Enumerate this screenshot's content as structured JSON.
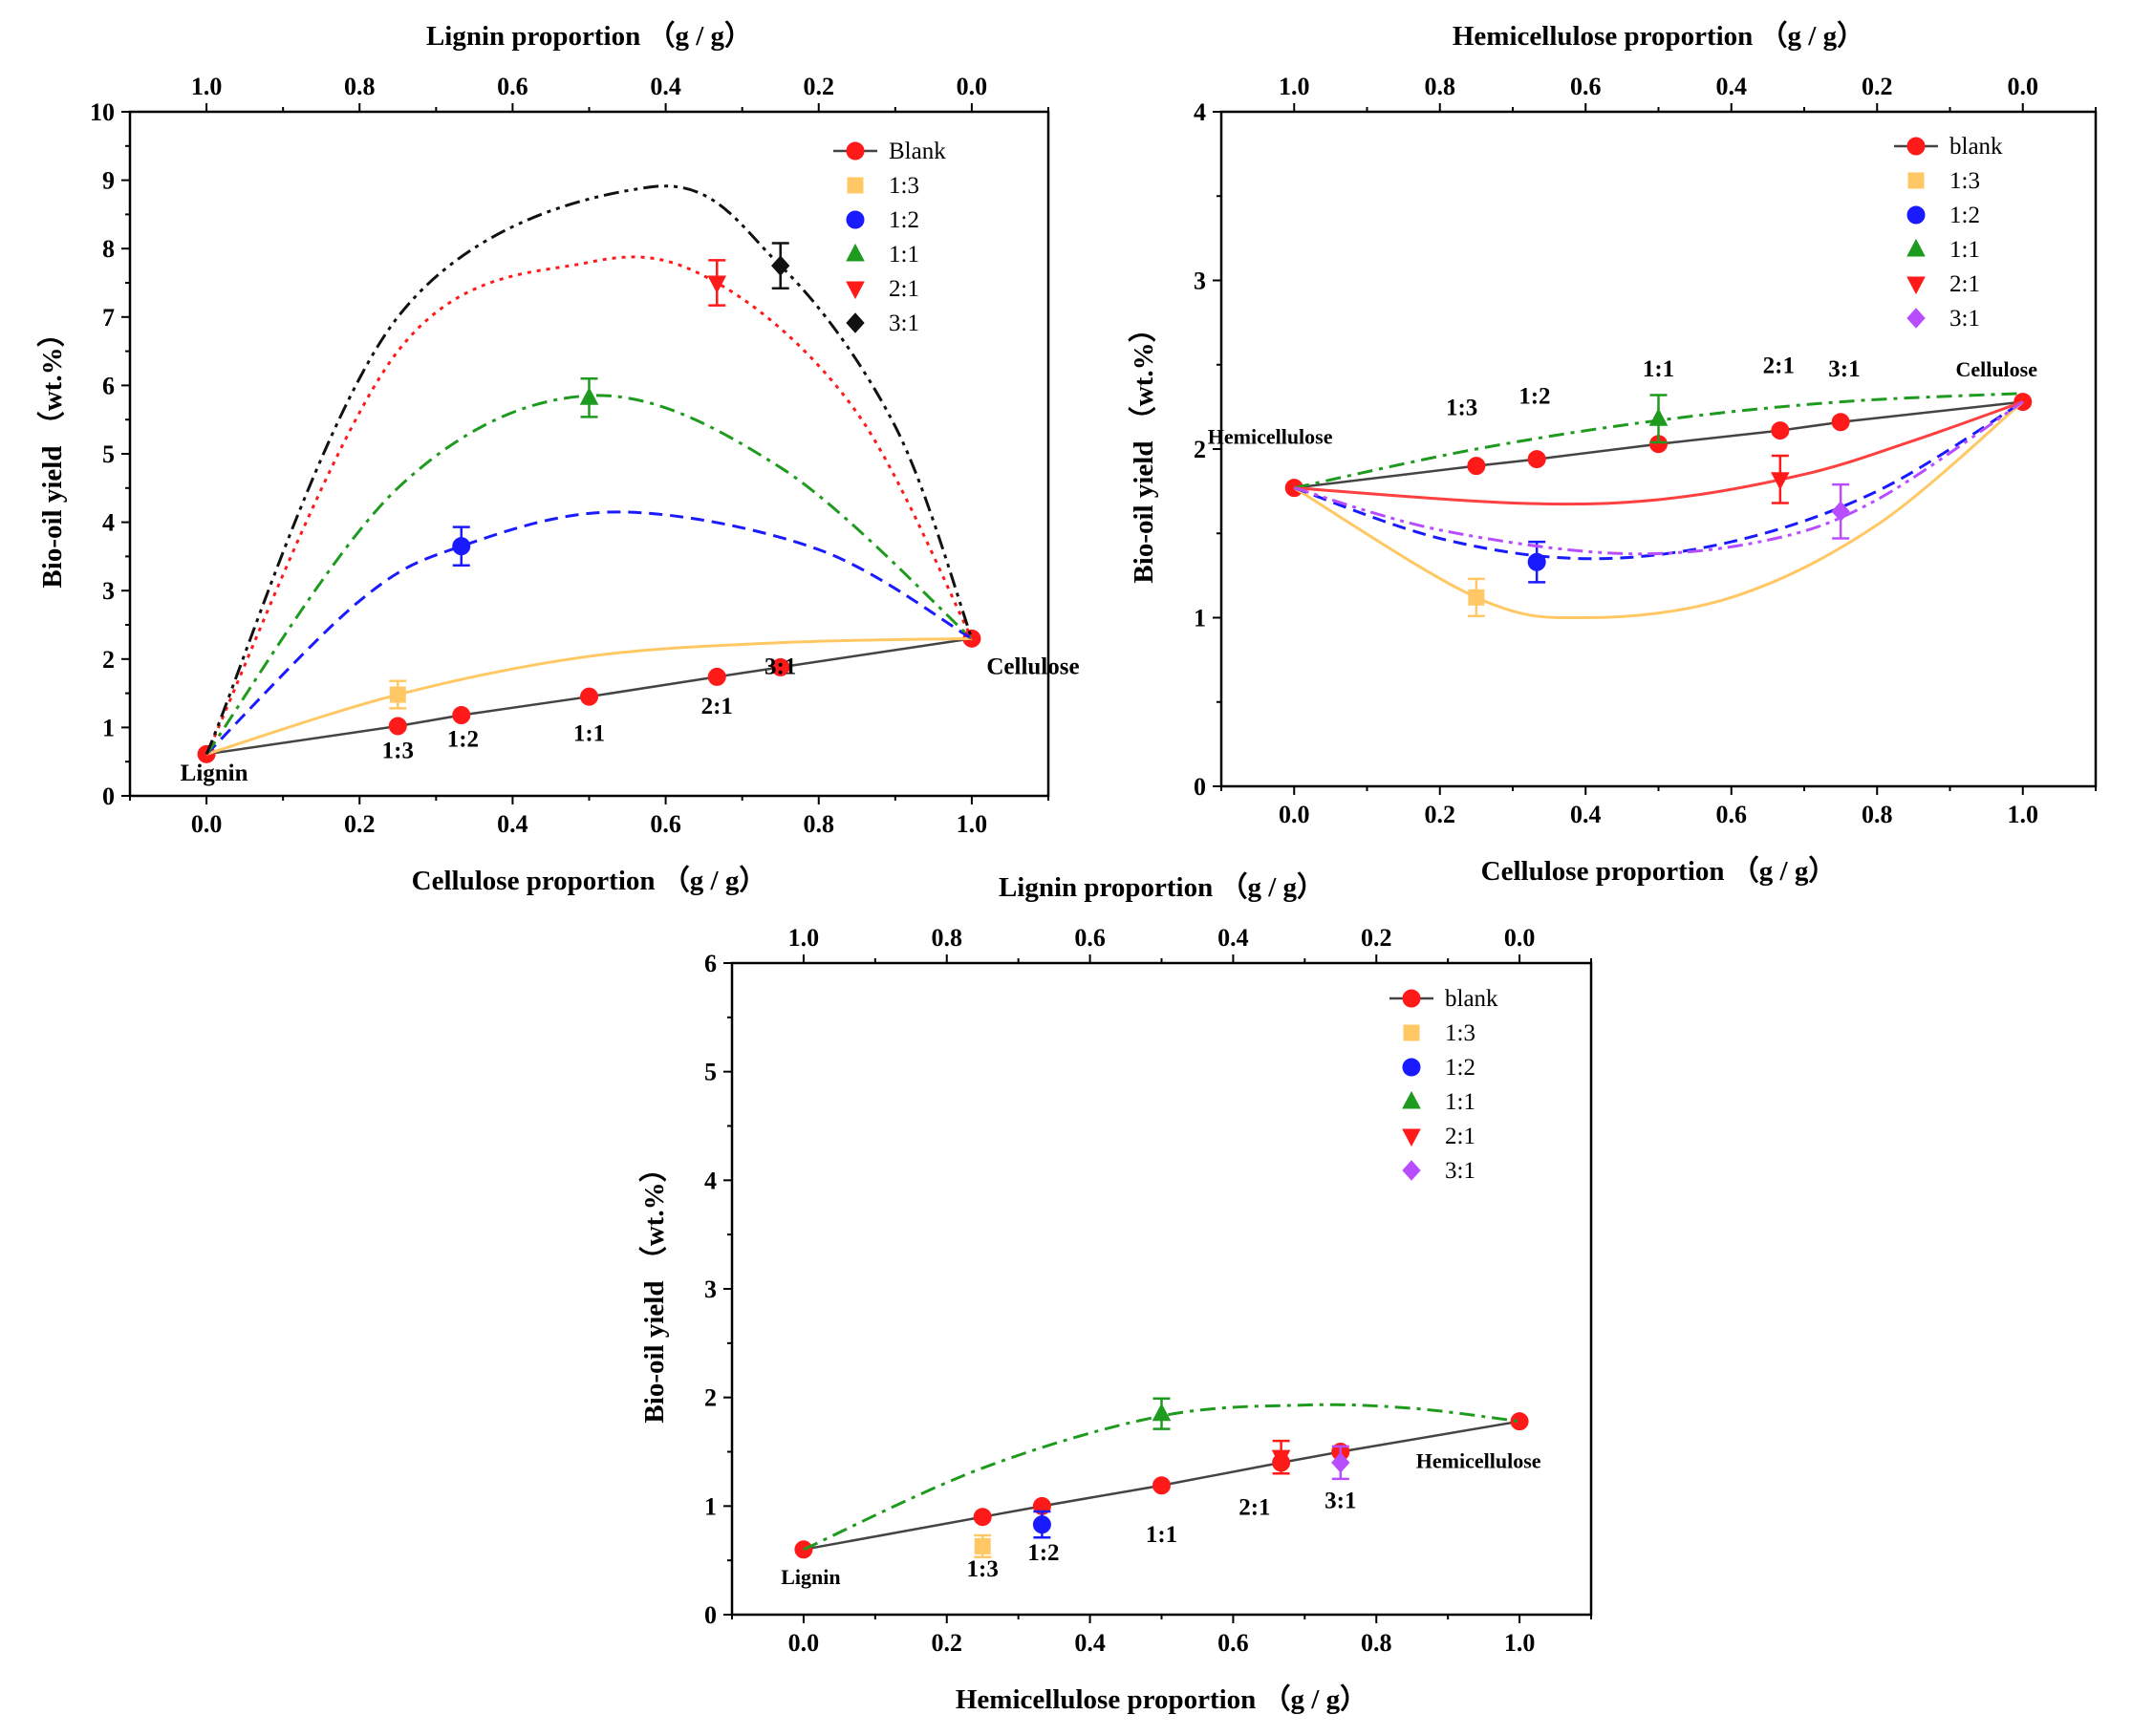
{
  "chart_data": [
    {
      "type": "scatter",
      "xlabel": "Cellulose proportion （g / g）",
      "x2label": "Lignin proportion （g / g）",
      "ylabel": "Bio-oil yield （wt.%）",
      "xlim": [
        -0.1,
        1.1
      ],
      "ylim": [
        0,
        10
      ],
      "x_ticks": [
        "0.0",
        "0.2",
        "0.4",
        "0.6",
        "0.8",
        "1.0"
      ],
      "x2_ticks": [
        "1.0",
        "0.8",
        "0.6",
        "0.4",
        "0.2",
        "0.0"
      ],
      "y_ticks": [
        "0",
        "1",
        "2",
        "3",
        "4",
        "5",
        "6",
        "7",
        "8",
        "9",
        "10"
      ],
      "legend_position": "top-right",
      "series": [
        {
          "name": "Blank",
          "color": "#ff1a1a",
          "marker": "circle",
          "line": "solid",
          "line_color": "#444444",
          "x": [
            0,
            0.25,
            0.333,
            0.5,
            0.667,
            0.75,
            1.0
          ],
          "y": [
            0.61,
            1.02,
            1.18,
            1.45,
            1.74,
            1.88,
            2.3
          ]
        },
        {
          "name": "1:3",
          "color": "#ffc864",
          "marker": "square",
          "line": "solid",
          "x": [
            0.25
          ],
          "y": [
            1.48
          ],
          "err": [
            0.2
          ],
          "curve": [
            [
              0,
              0.61
            ],
            [
              0.25,
              1.48
            ],
            [
              0.5,
              2.04
            ],
            [
              0.75,
              2.24
            ],
            [
              1.0,
              2.3
            ]
          ]
        },
        {
          "name": "1:2",
          "color": "#1a1aff",
          "marker": "circle",
          "line": "dashed",
          "x": [
            0.333
          ],
          "y": [
            3.65
          ],
          "err": [
            0.28
          ],
          "curve": [
            [
              0,
              0.61
            ],
            [
              0.2,
              2.85
            ],
            [
              0.333,
              3.65
            ],
            [
              0.54,
              4.15
            ],
            [
              0.8,
              3.6
            ],
            [
              1.0,
              2.3
            ]
          ]
        },
        {
          "name": "1:1",
          "color": "#1e9b1e",
          "marker": "triangle-up",
          "line": "dashdot",
          "x": [
            0.5
          ],
          "y": [
            5.82
          ],
          "err": [
            0.28
          ],
          "curve": [
            [
              0,
              0.61
            ],
            [
              0.25,
              4.5
            ],
            [
              0.5,
              5.85
            ],
            [
              0.75,
              4.8
            ],
            [
              1.0,
              2.3
            ]
          ]
        },
        {
          "name": "2:1",
          "color": "#ff1a1a",
          "marker": "triangle-down",
          "line": "dotted",
          "x": [
            0.667
          ],
          "y": [
            7.5
          ],
          "err": [
            0.33
          ],
          "curve": [
            [
              0,
              0.61
            ],
            [
              0.25,
              6.5
            ],
            [
              0.5,
              7.8
            ],
            [
              0.667,
              7.5
            ],
            [
              0.85,
              5.6
            ],
            [
              1.0,
              2.3
            ]
          ]
        },
        {
          "name": "3:1",
          "color": "#111111",
          "marker": "diamond",
          "line": "dashdotdot",
          "x": [
            0.75
          ],
          "y": [
            7.75
          ],
          "err": [
            0.33
          ],
          "curve": [
            [
              0,
              0.61
            ],
            [
              0.25,
              7.0
            ],
            [
              0.58,
              8.9
            ],
            [
              0.75,
              7.75
            ],
            [
              0.9,
              5.4
            ],
            [
              1.0,
              2.3
            ]
          ]
        }
      ],
      "annotations": [
        {
          "text": "Lignin",
          "x": 0.01,
          "y": 0.22
        },
        {
          "text": "Cellulose",
          "x": 1.08,
          "y": 1.78
        },
        {
          "text": "1:3",
          "x": 0.25,
          "y": 0.55
        },
        {
          "text": "1:2",
          "x": 0.335,
          "y": 0.72
        },
        {
          "text": "1:1",
          "x": 0.5,
          "y": 0.8
        },
        {
          "text": "2:1",
          "x": 0.667,
          "y": 1.2
        },
        {
          "text": "3:1",
          "x": 0.75,
          "y": 1.78
        }
      ]
    },
    {
      "type": "scatter",
      "xlabel": "Cellulose proportion （g / g）",
      "x2label": "Hemicellulose proportion （g / g）",
      "ylabel": "Bio-oil yield （wt.%）",
      "xlim": [
        -0.1,
        1.1
      ],
      "ylim": [
        0,
        4
      ],
      "x_ticks": [
        "0.0",
        "0.2",
        "0.4",
        "0.6",
        "0.8",
        "1.0"
      ],
      "x2_ticks": [
        "1.0",
        "0.8",
        "0.6",
        "0.4",
        "0.2",
        "0.0"
      ],
      "y_ticks": [
        "0",
        "1",
        "2",
        "3",
        "4"
      ],
      "legend_position": "top-right",
      "series": [
        {
          "name": "blank",
          "color": "#ff1a1a",
          "marker": "circle",
          "line": "solid",
          "line_color": "#444444",
          "x": [
            0,
            0.25,
            0.333,
            0.5,
            0.667,
            0.75,
            1.0
          ],
          "y": [
            1.77,
            1.9,
            1.94,
            2.03,
            2.11,
            2.16,
            2.28
          ]
        },
        {
          "name": "1:3",
          "color": "#ffc864",
          "marker": "square",
          "line": "solid",
          "x": [
            0.25
          ],
          "y": [
            1.12
          ],
          "err": [
            0.11
          ],
          "curve": [
            [
              0,
              1.77
            ],
            [
              0.25,
              1.12
            ],
            [
              0.4,
              1.0
            ],
            [
              0.6,
              1.12
            ],
            [
              0.8,
              1.55
            ],
            [
              1.0,
              2.28
            ]
          ]
        },
        {
          "name": "1:2",
          "color": "#1a1aff",
          "marker": "circle",
          "line": "dashed",
          "x": [
            0.333
          ],
          "y": [
            1.33
          ],
          "err": [
            0.12
          ],
          "curve": [
            [
              0,
              1.77
            ],
            [
              0.2,
              1.47
            ],
            [
              0.4,
              1.35
            ],
            [
              0.6,
              1.45
            ],
            [
              0.8,
              1.75
            ],
            [
              1.0,
              2.28
            ]
          ]
        },
        {
          "name": "1:1",
          "color": "#1e9b1e",
          "marker": "triangle-up",
          "line": "dashdot",
          "x": [
            0.5
          ],
          "y": [
            2.18
          ],
          "err": [
            0.14
          ],
          "curve": [
            [
              0,
              1.77
            ],
            [
              0.25,
              2.0
            ],
            [
              0.5,
              2.17
            ],
            [
              0.75,
              2.28
            ],
            [
              1.0,
              2.33
            ]
          ]
        },
        {
          "name": "2:1",
          "color": "#ff1a1a",
          "marker": "triangle-down",
          "line": "solid",
          "line_color": "#ff4040",
          "x": [
            0.667
          ],
          "y": [
            1.82
          ],
          "err": [
            0.14
          ],
          "curve": [
            [
              0,
              1.77
            ],
            [
              0.3,
              1.68
            ],
            [
              0.5,
              1.7
            ],
            [
              0.7,
              1.85
            ],
            [
              0.85,
              2.05
            ],
            [
              1.0,
              2.28
            ]
          ]
        },
        {
          "name": "3:1",
          "color": "#b84dff",
          "marker": "diamond",
          "line": "dashdotdot",
          "x": [
            0.75
          ],
          "y": [
            1.63
          ],
          "err": [
            0.16
          ],
          "curve": [
            [
              0,
              1.77
            ],
            [
              0.2,
              1.52
            ],
            [
              0.45,
              1.38
            ],
            [
              0.65,
              1.46
            ],
            [
              0.8,
              1.7
            ],
            [
              1.0,
              2.28
            ]
          ]
        }
      ],
      "annotations": [
        {
          "text": "Hemicellulose",
          "x": -0.04,
          "y": 2.03
        },
        {
          "text": "Cellulose",
          "x": 1.02,
          "y": 2.43
        },
        {
          "text": "1:3",
          "x": 0.23,
          "y": 2.2
        },
        {
          "text": "1:2",
          "x": 0.33,
          "y": 2.27
        },
        {
          "text": "1:1",
          "x": 0.5,
          "y": 2.43
        },
        {
          "text": "2:1",
          "x": 0.665,
          "y": 2.45
        },
        {
          "text": "3:1",
          "x": 0.755,
          "y": 2.43
        }
      ]
    },
    {
      "type": "scatter",
      "xlabel": "Hemicellulose proportion （g / g）",
      "x2label": "Lignin proportion （g / g）",
      "ylabel": "Bio-oil yield （wt.%）",
      "xlim": [
        -0.1,
        1.1
      ],
      "ylim": [
        0,
        6
      ],
      "x_ticks": [
        "0.0",
        "0.2",
        "0.4",
        "0.6",
        "0.8",
        "1.0"
      ],
      "x2_ticks": [
        "1.0",
        "0.8",
        "0.6",
        "0.4",
        "0.2",
        "0.0"
      ],
      "y_ticks": [
        "0",
        "1",
        "2",
        "3",
        "4",
        "5",
        "6"
      ],
      "legend_position": "top-right",
      "series": [
        {
          "name": "blank",
          "color": "#ff1a1a",
          "marker": "circle",
          "line": "solid",
          "line_color": "#444444",
          "x": [
            0,
            0.25,
            0.333,
            0.5,
            0.667,
            0.75,
            1.0
          ],
          "y": [
            0.6,
            0.9,
            1.0,
            1.19,
            1.4,
            1.5,
            1.78
          ]
        },
        {
          "name": "1:3",
          "color": "#ffc864",
          "marker": "square",
          "line": "none",
          "x": [
            0.25
          ],
          "y": [
            0.63
          ],
          "err": [
            0.1
          ]
        },
        {
          "name": "1:2",
          "color": "#1a1aff",
          "marker": "circle",
          "line": "none",
          "x": [
            0.333
          ],
          "y": [
            0.83
          ],
          "err": [
            0.12
          ]
        },
        {
          "name": "1:1",
          "color": "#1e9b1e",
          "marker": "triangle-up",
          "line": "dashdot",
          "x": [
            0.5
          ],
          "y": [
            1.85
          ],
          "err": [
            0.14
          ],
          "curve": [
            [
              0,
              0.6
            ],
            [
              0.25,
              1.35
            ],
            [
              0.5,
              1.83
            ],
            [
              0.7,
              1.93
            ],
            [
              0.85,
              1.9
            ],
            [
              1.0,
              1.78
            ]
          ]
        },
        {
          "name": "2:1",
          "color": "#ff1a1a",
          "marker": "triangle-down",
          "line": "none",
          "x": [
            0.667
          ],
          "y": [
            1.45
          ],
          "err": [
            0.15
          ]
        },
        {
          "name": "3:1",
          "color": "#b84dff",
          "marker": "diamond",
          "line": "none",
          "x": [
            0.75
          ],
          "y": [
            1.4
          ],
          "err": [
            0.15
          ]
        }
      ],
      "annotations": [
        {
          "text": "Lignin",
          "x": 0.01,
          "y": 0.28
        },
        {
          "text": "Hemicellulose",
          "x": 1.03,
          "y": 1.35
        },
        {
          "text": "1:3",
          "x": 0.25,
          "y": 0.35
        },
        {
          "text": "1:2",
          "x": 0.335,
          "y": 0.5
        },
        {
          "text": "1:1",
          "x": 0.5,
          "y": 0.67
        },
        {
          "text": "2:1",
          "x": 0.63,
          "y": 0.92
        },
        {
          "text": "3:1",
          "x": 0.75,
          "y": 0.98
        }
      ]
    }
  ]
}
